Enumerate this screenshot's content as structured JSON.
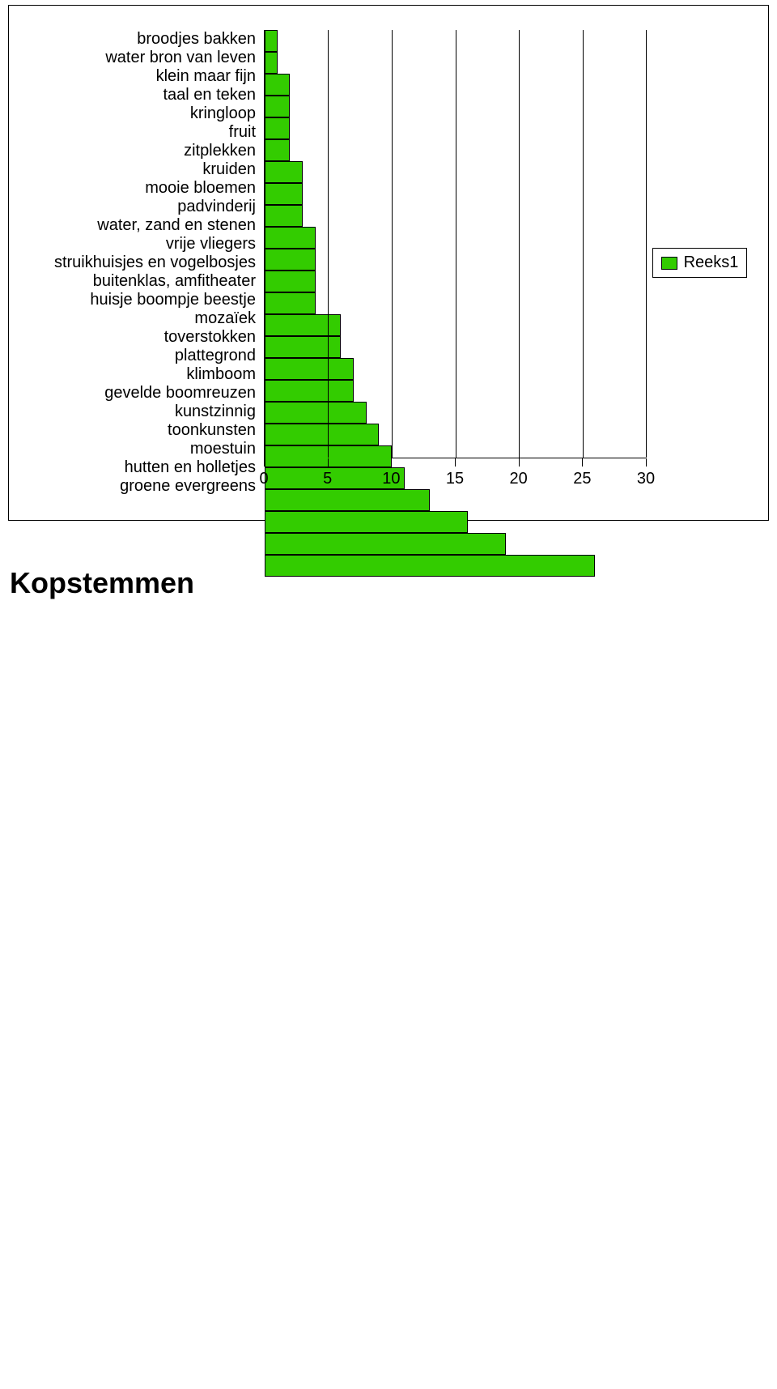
{
  "heading": "Kopstemmen",
  "chart": {
    "type": "bar-horizontal",
    "series_name": "Reeks1",
    "bar_fill": "#33cc00",
    "bar_border": "#000000",
    "gridline_color": "#000000",
    "background_color": "#ffffff",
    "xaxis": {
      "min": 0,
      "max": 30,
      "ticks": [
        0,
        5,
        10,
        15,
        20,
        25,
        30
      ],
      "tick_fontsize": 20
    },
    "label_fontsize": 20,
    "data": [
      {
        "label": "broodjes bakken",
        "value": 1
      },
      {
        "label": "water bron van leven",
        "value": 1
      },
      {
        "label": "klein maar fijn",
        "value": 2
      },
      {
        "label": "taal en teken",
        "value": 2
      },
      {
        "label": "kringloop",
        "value": 2
      },
      {
        "label": "fruit",
        "value": 2
      },
      {
        "label": "zitplekken",
        "value": 3
      },
      {
        "label": "kruiden",
        "value": 3
      },
      {
        "label": "mooie bloemen",
        "value": 3
      },
      {
        "label": "padvinderij",
        "value": 4
      },
      {
        "label": "water, zand en stenen",
        "value": 4
      },
      {
        "label": "vrije vliegers",
        "value": 4
      },
      {
        "label": "struikhuisjes en vogelbosjes",
        "value": 4
      },
      {
        "label": "buitenklas, amfitheater",
        "value": 6
      },
      {
        "label": "huisje boompje beestje",
        "value": 6
      },
      {
        "label": "mozaïek",
        "value": 7
      },
      {
        "label": "toverstokken",
        "value": 7
      },
      {
        "label": "plattegrond",
        "value": 8
      },
      {
        "label": "klimboom",
        "value": 9
      },
      {
        "label": "gevelde boomreuzen",
        "value": 10
      },
      {
        "label": "kunstzinnig",
        "value": 11
      },
      {
        "label": "toonkunsten",
        "value": 13
      },
      {
        "label": "moestuin",
        "value": 16
      },
      {
        "label": "hutten en holletjes",
        "value": 19
      },
      {
        "label": "groene evergreens",
        "value": 26
      }
    ]
  }
}
